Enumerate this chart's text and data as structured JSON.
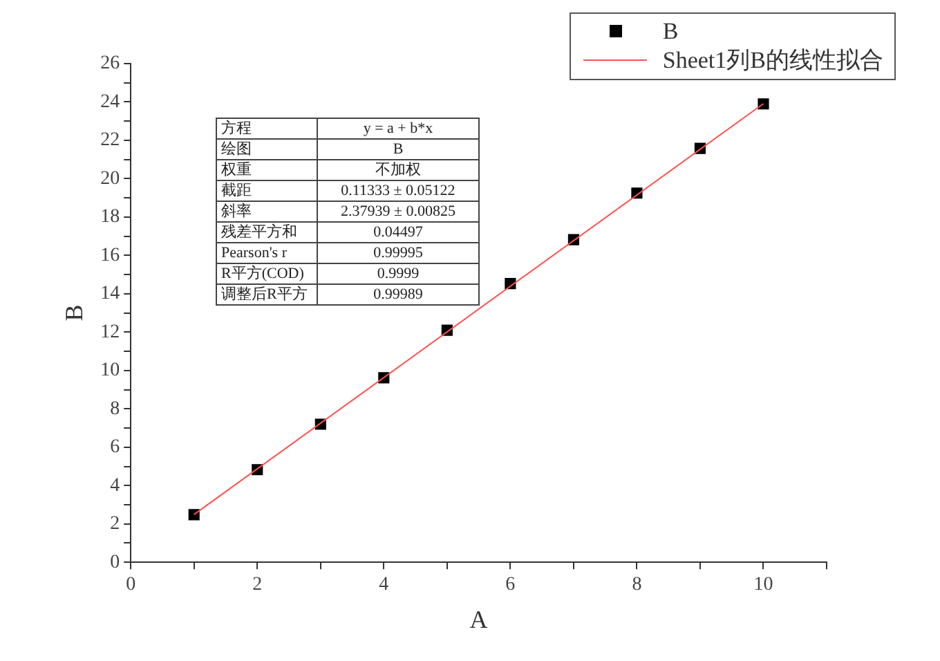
{
  "chart_data": {
    "type": "scatter",
    "xlabel": "A",
    "ylabel": "B",
    "x": [
      1,
      2,
      3,
      4,
      5,
      6,
      7,
      8,
      9,
      10
    ],
    "series": [
      {
        "name": "B",
        "type": "scatter",
        "color": "#000000",
        "marker": "square",
        "values": [
          2.48,
          4.83,
          7.2,
          9.62,
          12.1,
          14.53,
          16.82,
          19.25,
          21.58,
          23.9
        ]
      },
      {
        "name": "Sheet1列B的线性拟合",
        "type": "line",
        "color": "#ff5050",
        "marker": "none",
        "x": [
          1,
          10
        ],
        "values": [
          2.49,
          23.91
        ]
      }
    ],
    "xlim": [
      0,
      11
    ],
    "ylim": [
      0,
      26
    ],
    "xticks": [
      0,
      {
        "value": 1,
        "label": null
      },
      2,
      {
        "value": 3,
        "label": null
      },
      4,
      {
        "value": 5,
        "label": null
      },
      6,
      {
        "value": 7,
        "label": null
      },
      8,
      {
        "value": 9,
        "label": null
      },
      10,
      {
        "value": 11,
        "label": null
      }
    ],
    "yticks": [
      0,
      {
        "value": 1,
        "label": null
      },
      2,
      {
        "value": 3,
        "label": null
      },
      4,
      {
        "value": 5,
        "label": null
      },
      6,
      {
        "value": 7,
        "label": null
      },
      8,
      {
        "value": 9,
        "label": null
      },
      10,
      {
        "value": 11,
        "label": null
      },
      12,
      {
        "value": 13,
        "label": null
      },
      14,
      {
        "value": 15,
        "label": null
      },
      16,
      {
        "value": 17,
        "label": null
      },
      18,
      {
        "value": 19,
        "label": null
      },
      20,
      {
        "value": 21,
        "label": null
      },
      22,
      {
        "value": 23,
        "label": null
      },
      24,
      {
        "value": 25,
        "label": null
      },
      26
    ],
    "grid": false,
    "legend": "top right",
    "annotations": [
      "方程",
      "y = a + b*x",
      "绘图",
      "B",
      "权重",
      "不加权",
      "截距",
      "0.11333 ± 0.05122",
      "斜率",
      "2.37939 ± 0.00825",
      "残差平方和",
      "0.04497",
      "Pearson's r",
      "0.99995",
      "R平方(COD)",
      "0.9999",
      "调整后R平方",
      "0.99989"
    ]
  }
}
